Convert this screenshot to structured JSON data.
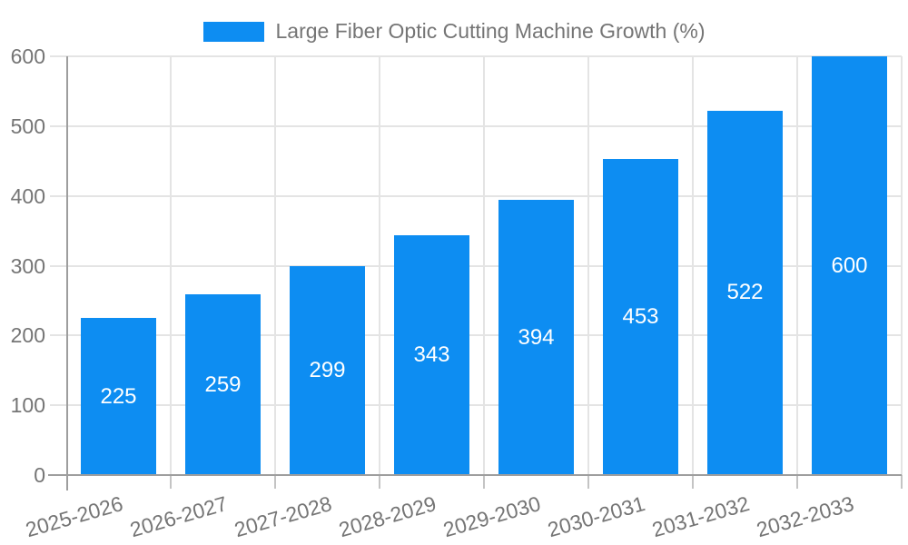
{
  "chart_data": {
    "type": "bar",
    "title": "Large Fiber Optic Cutting Machine Growth (%)",
    "categories": [
      "2025-2026",
      "2026-2027",
      "2027-2028",
      "2028-2029",
      "2029-2030",
      "2030-2031",
      "2031-2032",
      "2032-2033"
    ],
    "values": [
      225,
      259,
      299,
      343,
      394,
      453,
      522,
      600
    ],
    "xlabel": "",
    "ylabel": "",
    "ylim": [
      0,
      600
    ],
    "yticks": [
      0,
      100,
      200,
      300,
      400,
      500,
      600
    ],
    "grid": true,
    "legend_position": "top-center",
    "value_labels": "centered-inside-bars",
    "x_label_rotation_deg": -16,
    "colors": {
      "bar": "#0d8df2",
      "value_label": "#ffffff",
      "axis": "#9e9e9e",
      "grid": "#e4e4e4",
      "x_tick": "#c4c4c4",
      "text": "#757575",
      "background": "#ffffff"
    }
  }
}
